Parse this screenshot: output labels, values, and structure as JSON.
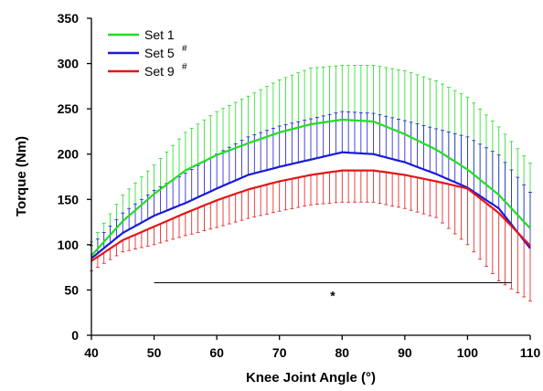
{
  "chart_data": {
    "type": "line",
    "xlabel": "Knee Joint Angle (°)",
    "ylabel": "Torque (Nm)",
    "xlim": [
      40,
      110
    ],
    "ylim": [
      0,
      350
    ],
    "xticks": [
      "40",
      "50",
      "60",
      "70",
      "80",
      "90",
      "100",
      "110"
    ],
    "yticks": [
      "0",
      "50",
      "100",
      "150",
      "200",
      "250",
      "300",
      "350"
    ],
    "grid": false,
    "legend_position": "top-left",
    "x": [
      40,
      45,
      50,
      55,
      60,
      65,
      70,
      75,
      80,
      85,
      90,
      95,
      100,
      105,
      110
    ],
    "series": [
      {
        "name": "Set 1",
        "marker": "",
        "color": "#22dd22",
        "values": [
          88,
          126,
          156,
          182,
          199,
          212,
          224,
          233,
          238,
          236,
          222,
          205,
          183,
          155,
          118
        ],
        "errors": [
          15,
          29,
          32,
          42,
          48,
          52,
          58,
          62,
          60,
          62,
          70,
          76,
          80,
          75,
          72
        ]
      },
      {
        "name": "Set 5",
        "marker": "#",
        "color": "#1a1ad6",
        "values": [
          85,
          113,
          132,
          146,
          162,
          177,
          186,
          194,
          202,
          200,
          191,
          178,
          163,
          140,
          96
        ],
        "errors": [
          14,
          22,
          28,
          33,
          38,
          42,
          45,
          45,
          45,
          45,
          46,
          50,
          56,
          59,
          62
        ]
      },
      {
        "name": "Set 9",
        "marker": "#",
        "color": "#e01818",
        "values": [
          82,
          105,
          120,
          135,
          149,
          161,
          170,
          177,
          182,
          182,
          177,
          170,
          162,
          135,
          99
        ],
        "errors": [
          11,
          13,
          20,
          25,
          30,
          32,
          33,
          33,
          35,
          35,
          37,
          40,
          62,
          75,
          61
        ]
      }
    ],
    "annotations": [
      {
        "text": "*",
        "x_start": 50,
        "x_end": 107,
        "y": 58
      }
    ]
  }
}
